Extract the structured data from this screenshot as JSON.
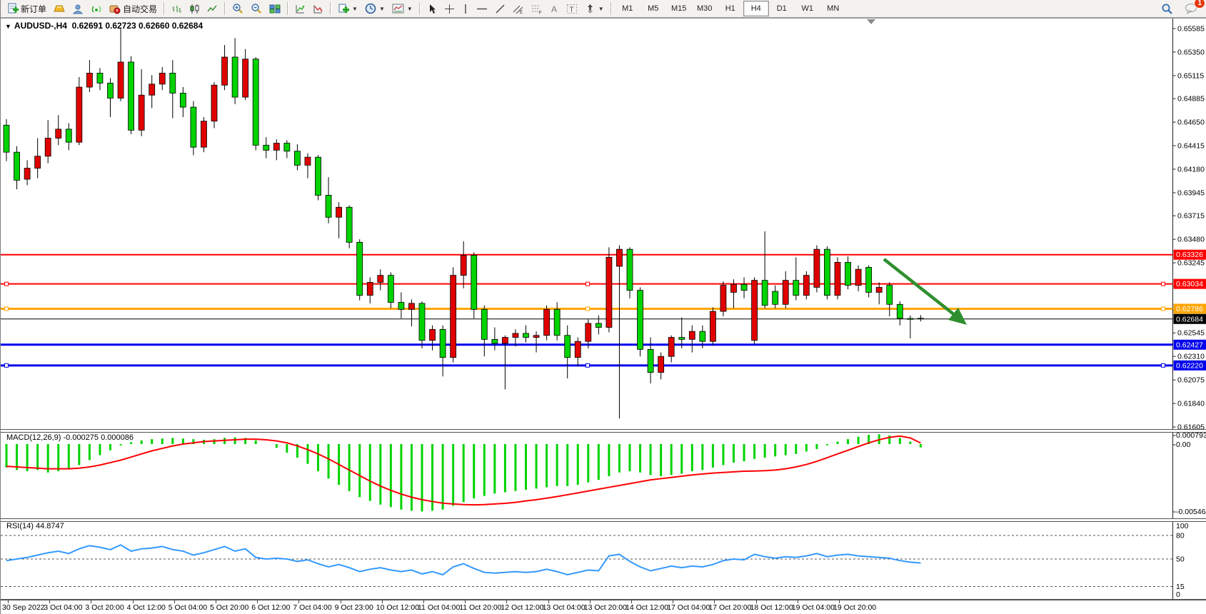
{
  "toolbar": {
    "new_order_label": "新订单",
    "auto_trading_label": "自动交易",
    "timeframes": [
      "M1",
      "M5",
      "M15",
      "M30",
      "H1",
      "H4",
      "D1",
      "W1",
      "MN"
    ],
    "active_timeframe": "H4",
    "notification_badge": "1"
  },
  "chart": {
    "symbol_label": "AUDUSD-,H4",
    "ohlc_text": "0.62691 0.62723 0.62660 0.62684",
    "open": "0.62691",
    "high": "0.62723",
    "low": "0.62660",
    "close": "0.62684"
  },
  "chart_data": {
    "type": "candlestick",
    "symbol": "AUDUSD",
    "timeframe": "H4",
    "convention": "red = bullish, green = bearish (Chinese convention)",
    "bull_color": "#e00000",
    "bear_color": "#00d300",
    "y_axis": {
      "min": 0.61605,
      "max": 0.65585,
      "ticks": [
        0.65585,
        0.6535,
        0.65115,
        0.64885,
        0.6465,
        0.64415,
        0.6418,
        0.63945,
        0.63715,
        0.6348,
        0.63245,
        0.6301,
        0.62775,
        0.62545,
        0.6231,
        0.62075,
        0.6184,
        0.61605
      ]
    },
    "time_labels": [
      "30 Sep 2022",
      "3 Oct 04:00",
      "3 Oct 20:00",
      "4 Oct 12:00",
      "5 Oct 04:00",
      "5 Oct 20:00",
      "6 Oct 12:00",
      "7 Oct 04:00",
      "9 Oct 23:00",
      "10 Oct 12:00",
      "11 Oct 04:00",
      "11 Oct 20:00",
      "12 Oct 12:00",
      "13 Oct 04:00",
      "13 Oct 20:00",
      "14 Oct 12:00",
      "17 Oct 04:00",
      "17 Oct 20:00",
      "18 Oct 12:00",
      "19 Oct 04:00",
      "19 Oct 20:00"
    ],
    "hlines": [
      {
        "price": 0.63326,
        "color": "#ff0000",
        "width": 2,
        "handles": false
      },
      {
        "price": 0.63034,
        "color": "#ff0000",
        "width": 2,
        "handles": true
      },
      {
        "price": 0.62786,
        "color": "#ffa500",
        "width": 3,
        "handles": true
      },
      {
        "price": 0.62684,
        "color": "#000000",
        "width": 1,
        "handles": false
      },
      {
        "price": 0.62427,
        "color": "#0000ee",
        "width": 3,
        "handles": false
      },
      {
        "price": 0.6222,
        "color": "#0000ee",
        "width": 3,
        "handles": true
      }
    ],
    "trend_arrow": {
      "color": "#2f8f2f",
      "direction": "down-right"
    },
    "candles": [
      [
        0.6462,
        0.6468,
        0.6426,
        0.6435
      ],
      [
        0.6435,
        0.6441,
        0.6398,
        0.6407
      ],
      [
        0.6408,
        0.6427,
        0.6402,
        0.6419
      ],
      [
        0.6419,
        0.6449,
        0.6409,
        0.6431
      ],
      [
        0.6431,
        0.6467,
        0.6424,
        0.6449
      ],
      [
        0.6449,
        0.6472,
        0.6442,
        0.6458
      ],
      [
        0.6458,
        0.6464,
        0.6437,
        0.6445
      ],
      [
        0.6445,
        0.651,
        0.6442,
        0.65
      ],
      [
        0.65,
        0.6527,
        0.6495,
        0.6514
      ],
      [
        0.6514,
        0.6519,
        0.6497,
        0.6504
      ],
      [
        0.6504,
        0.6509,
        0.647,
        0.6489
      ],
      [
        0.6489,
        0.65585,
        0.6486,
        0.6525
      ],
      [
        0.6525,
        0.6531,
        0.6453,
        0.6457
      ],
      [
        0.6457,
        0.6518,
        0.6451,
        0.6492
      ],
      [
        0.6492,
        0.6512,
        0.6479,
        0.6503
      ],
      [
        0.6503,
        0.652,
        0.6497,
        0.6514
      ],
      [
        0.6514,
        0.6527,
        0.6469,
        0.6494
      ],
      [
        0.6494,
        0.65,
        0.647,
        0.648
      ],
      [
        0.648,
        0.6486,
        0.6432,
        0.644
      ],
      [
        0.644,
        0.647,
        0.6435,
        0.6466
      ],
      [
        0.6466,
        0.6505,
        0.6459,
        0.6502
      ],
      [
        0.6502,
        0.6542,
        0.6497,
        0.653
      ],
      [
        0.653,
        0.6549,
        0.6483,
        0.649
      ],
      [
        0.649,
        0.6538,
        0.6487,
        0.6528
      ],
      [
        0.6528,
        0.653,
        0.6437,
        0.6442
      ],
      [
        0.6442,
        0.645,
        0.6429,
        0.6437
      ],
      [
        0.6437,
        0.6448,
        0.6427,
        0.6444
      ],
      [
        0.6444,
        0.6447,
        0.6429,
        0.6436
      ],
      [
        0.6436,
        0.6443,
        0.6417,
        0.6422
      ],
      [
        0.6422,
        0.6434,
        0.6409,
        0.643
      ],
      [
        0.643,
        0.6432,
        0.6387,
        0.6392
      ],
      [
        0.6392,
        0.641,
        0.6364,
        0.637
      ],
      [
        0.637,
        0.6385,
        0.6349,
        0.638
      ],
      [
        0.638,
        0.6382,
        0.6339,
        0.6345
      ],
      [
        0.6345,
        0.6348,
        0.6287,
        0.6292
      ],
      [
        0.6292,
        0.631,
        0.6284,
        0.6305
      ],
      [
        0.6305,
        0.6318,
        0.6297,
        0.6312
      ],
      [
        0.6312,
        0.6315,
        0.6279,
        0.6285
      ],
      [
        0.6285,
        0.6295,
        0.6269,
        0.6278
      ],
      [
        0.6278,
        0.6288,
        0.6261,
        0.6284
      ],
      [
        0.6284,
        0.6286,
        0.6239,
        0.6247
      ],
      [
        0.6247,
        0.6262,
        0.6237,
        0.6258
      ],
      [
        0.6258,
        0.6262,
        0.6211,
        0.623
      ],
      [
        0.623,
        0.632,
        0.6225,
        0.6312
      ],
      [
        0.6312,
        0.6346,
        0.6299,
        0.6332
      ],
      [
        0.6332,
        0.6335,
        0.6269,
        0.6278
      ],
      [
        0.6278,
        0.6282,
        0.6231,
        0.6248
      ],
      [
        0.6248,
        0.626,
        0.6237,
        0.6244
      ],
      [
        0.6244,
        0.6252,
        0.6198,
        0.625
      ],
      [
        0.625,
        0.6258,
        0.6241,
        0.6254
      ],
      [
        0.6254,
        0.6262,
        0.6245,
        0.625
      ],
      [
        0.625,
        0.6256,
        0.6235,
        0.6252
      ],
      [
        0.6252,
        0.6282,
        0.6247,
        0.6278
      ],
      [
        0.6278,
        0.6285,
        0.6247,
        0.6252
      ],
      [
        0.6252,
        0.6262,
        0.6209,
        0.623
      ],
      [
        0.623,
        0.625,
        0.6221,
        0.6246
      ],
      [
        0.6246,
        0.6268,
        0.6239,
        0.6264
      ],
      [
        0.6264,
        0.6272,
        0.6253,
        0.626
      ],
      [
        0.626,
        0.634,
        0.6255,
        0.633
      ],
      [
        0.6321,
        0.6342,
        0.6169,
        0.6338
      ],
      [
        0.6338,
        0.634,
        0.6289,
        0.6297
      ],
      [
        0.6297,
        0.63,
        0.6231,
        0.6238
      ],
      [
        0.6238,
        0.625,
        0.6204,
        0.6215
      ],
      [
        0.6215,
        0.6235,
        0.6208,
        0.6231
      ],
      [
        0.6231,
        0.6252,
        0.6225,
        0.625
      ],
      [
        0.625,
        0.627,
        0.6239,
        0.6248
      ],
      [
        0.6248,
        0.6262,
        0.6235,
        0.6256
      ],
      [
        0.6256,
        0.6262,
        0.6239,
        0.6246
      ],
      [
        0.6246,
        0.628,
        0.6242,
        0.6276
      ],
      [
        0.6276,
        0.6306,
        0.6271,
        0.6302
      ],
      [
        0.6295,
        0.6308,
        0.6279,
        0.6303
      ],
      [
        0.6303,
        0.631,
        0.6289,
        0.6297
      ],
      [
        0.6247,
        0.631,
        0.6243,
        0.6307
      ],
      [
        0.6307,
        0.6356,
        0.6279,
        0.6282
      ],
      [
        0.6296,
        0.6302,
        0.6279,
        0.6283
      ],
      [
        0.6283,
        0.6316,
        0.6279,
        0.6307
      ],
      [
        0.6307,
        0.633,
        0.6287,
        0.6292
      ],
      [
        0.6292,
        0.6316,
        0.6288,
        0.6312
      ],
      [
        0.63,
        0.6342,
        0.6295,
        0.6338
      ],
      [
        0.6338,
        0.6341,
        0.6288,
        0.6292
      ],
      [
        0.6292,
        0.633,
        0.6288,
        0.6325
      ],
      [
        0.6325,
        0.6331,
        0.6298,
        0.6302
      ],
      [
        0.6302,
        0.6322,
        0.6296,
        0.6318
      ],
      [
        0.632,
        0.6322,
        0.629,
        0.6295
      ],
      [
        0.6295,
        0.6305,
        0.6283,
        0.63
      ],
      [
        0.6302,
        0.6305,
        0.6271,
        0.6283
      ],
      [
        0.6283,
        0.6286,
        0.6262,
        0.6269
      ],
      [
        0.6269,
        0.6272,
        0.6249,
        0.6268
      ],
      [
        0.62691,
        0.62723,
        0.6266,
        0.62684
      ]
    ],
    "indicators": {
      "macd": {
        "label": "MACD(12,26,9)",
        "value_main": "-0.000275",
        "value_signal": "0.000086",
        "axis_labels": [
          "0.000793",
          "0.00",
          "-0.005464"
        ],
        "histogram_color": "#00d300",
        "signal_color": "#ff0000",
        "histogram": [
          -0.0019,
          -0.0021,
          -0.0022,
          -0.0021,
          -0.0023,
          -0.0022,
          -0.002,
          -0.0017,
          -0.0013,
          -0.0009,
          -0.0005,
          -0.0001,
          0.00015,
          0.0003,
          0.0004,
          0.00045,
          0.0005,
          0.00045,
          0.0004,
          0.00035,
          0.0004,
          0.0005,
          0.00055,
          0.0005,
          0.0003,
          0.0,
          -0.0003,
          -0.0007,
          -0.0011,
          -0.0016,
          -0.0022,
          -0.0028,
          -0.0033,
          -0.0038,
          -0.0043,
          -0.0046,
          -0.0049,
          -0.0051,
          -0.0053,
          -0.0054,
          -0.00546,
          -0.0054,
          -0.0053,
          -0.005,
          -0.0047,
          -0.0044,
          -0.0042,
          -0.004,
          -0.0039,
          -0.0038,
          -0.0037,
          -0.0036,
          -0.0035,
          -0.0034,
          -0.0034,
          -0.0033,
          -0.0031,
          -0.0029,
          -0.0026,
          -0.0023,
          -0.0022,
          -0.0023,
          -0.0025,
          -0.0026,
          -0.0025,
          -0.0024,
          -0.0022,
          -0.0021,
          -0.0019,
          -0.0017,
          -0.0015,
          -0.0014,
          -0.0012,
          -0.0011,
          -0.001,
          -0.0009,
          -0.0008,
          -0.0006,
          -0.0004,
          -0.0001,
          0.0002,
          0.0004,
          0.0006,
          0.00075,
          0.00079,
          0.0007,
          0.0005,
          0.0002,
          -0.000275
        ],
        "signal": [
          -0.0018,
          -0.00185,
          -0.0019,
          -0.00195,
          -0.002,
          -0.002,
          -0.002,
          -0.00195,
          -0.00185,
          -0.0017,
          -0.0015,
          -0.0013,
          -0.00105,
          -0.0008,
          -0.00055,
          -0.00035,
          -0.00015,
          0.0,
          0.0001,
          0.0002,
          0.00025,
          0.0003,
          0.00035,
          0.0004,
          0.0004,
          0.00035,
          0.00025,
          0.0001,
          -0.00015,
          -0.00045,
          -0.0008,
          -0.0012,
          -0.00165,
          -0.0021,
          -0.00255,
          -0.003,
          -0.0034,
          -0.00375,
          -0.00405,
          -0.0043,
          -0.0045,
          -0.00465,
          -0.00478,
          -0.00485,
          -0.0049,
          -0.00492,
          -0.0049,
          -0.00485,
          -0.0048,
          -0.00472,
          -0.0046,
          -0.0045,
          -0.00438,
          -0.00425,
          -0.0041,
          -0.00395,
          -0.0038,
          -0.00365,
          -0.0035,
          -0.00335,
          -0.0032,
          -0.00305,
          -0.0029,
          -0.0028,
          -0.0027,
          -0.0026,
          -0.0025,
          -0.00242,
          -0.00235,
          -0.0023,
          -0.00225,
          -0.0022,
          -0.00218,
          -0.00215,
          -0.0021,
          -0.002,
          -0.00185,
          -0.00165,
          -0.0014,
          -0.0011,
          -0.0008,
          -0.0005,
          -0.0002,
          0.0001,
          0.00035,
          0.00055,
          0.00065,
          0.0005,
          8.6e-05
        ]
      },
      "rsi": {
        "label": "RSI(14)",
        "value": "44.8747",
        "axis_labels": [
          "100",
          "80",
          "50",
          "15",
          "0"
        ],
        "levels": [
          80,
          50,
          15
        ],
        "line_color": "#3399ff",
        "series": [
          48,
          50,
          52,
          55,
          58,
          60,
          57,
          63,
          67,
          65,
          62,
          68,
          60,
          63,
          64,
          66,
          62,
          60,
          55,
          58,
          62,
          66,
          60,
          63,
          52,
          50,
          51,
          50,
          47,
          49,
          44,
          40,
          43,
          39,
          34,
          37,
          39,
          36,
          34,
          36,
          31,
          34,
          30,
          40,
          44,
          38,
          33,
          32,
          33,
          34,
          33,
          34,
          37,
          34,
          30,
          33,
          36,
          35,
          54,
          56,
          47,
          40,
          35,
          38,
          41,
          39,
          41,
          40,
          43,
          48,
          50,
          49,
          56,
          53,
          51,
          53,
          52,
          54,
          57,
          53,
          55,
          56,
          54,
          53,
          52,
          51,
          48,
          46,
          44.87
        ]
      }
    }
  }
}
